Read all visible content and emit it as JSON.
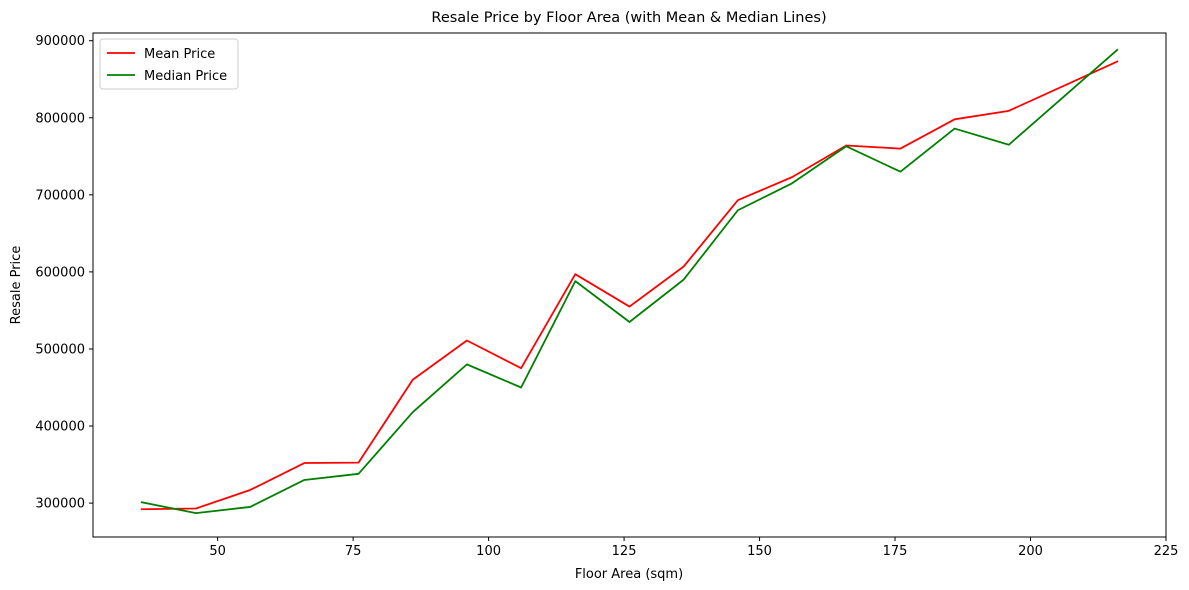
{
  "chart_data": {
    "type": "line",
    "title": "Resale Price by Floor Area (with Mean & Median Lines)",
    "xlabel": "Floor Area (sqm)",
    "ylabel": "Resale Price",
    "xlim": [
      27,
      225
    ],
    "ylim": [
      256000,
      910000
    ],
    "xticks": [
      50,
      75,
      100,
      125,
      150,
      175,
      200,
      225
    ],
    "yticks": [
      300000,
      400000,
      500000,
      600000,
      700000,
      800000,
      900000
    ],
    "grid": false,
    "legend_position": "top-left",
    "x": [
      36,
      46,
      56,
      66,
      76,
      86,
      96,
      106,
      116,
      126,
      136,
      146,
      156,
      166,
      176,
      186,
      196,
      216
    ],
    "series": [
      {
        "name": "Mean Price",
        "color": "#ff0000",
        "values": [
          292000,
          293000,
          317000,
          352000,
          352500,
          460000,
          511000,
          475000,
          597000,
          555000,
          607000,
          693000,
          723000,
          764000,
          760000,
          798000,
          809000,
          873000
        ]
      },
      {
        "name": "Median Price",
        "color": "#008000",
        "values": [
          301000,
          287000,
          295000,
          330000,
          338000,
          418000,
          480000,
          450000,
          588000,
          535000,
          590000,
          680000,
          715000,
          763000,
          730000,
          786000,
          765000,
          888000
        ]
      }
    ]
  }
}
